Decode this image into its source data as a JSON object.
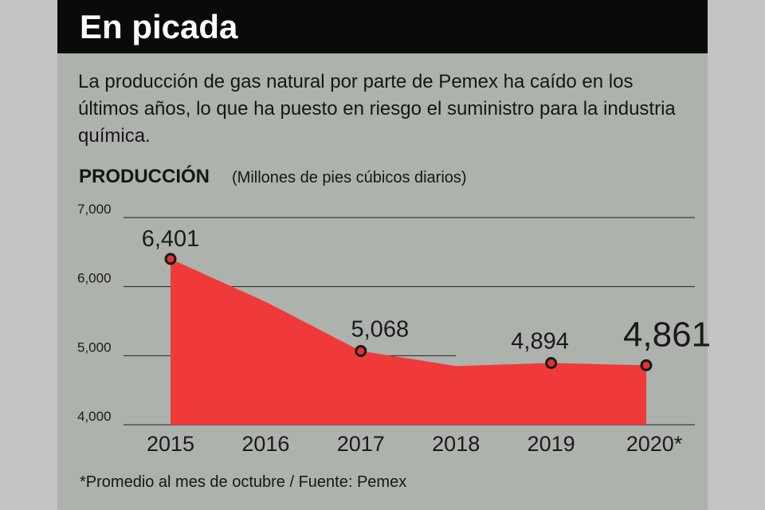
{
  "title": "En picada",
  "subtitle": "La producción de gas natural por parte de Pemex ha caído en los últimos años, lo que ha puesto en riesgo el suministro para la industria química.",
  "footnote": "*Promedio al mes de octubre / Fuente: Pemex",
  "colors": {
    "area": "#f03a3a",
    "header": "#0a0a0a",
    "panel": "#aeb2ad",
    "marker": "#e23232"
  },
  "chart_data": {
    "type": "area",
    "title": "PRODUCCIÓN",
    "unit": "(Millones de pies cúbicos diarios)",
    "x": [
      "2015",
      "2016",
      "2017",
      "2018",
      "2019",
      "2020*"
    ],
    "values": [
      6401,
      5780,
      5068,
      4850,
      4894,
      4861
    ],
    "data_labels": [
      "6,401",
      null,
      "5,068",
      null,
      "4,894",
      "4,861"
    ],
    "yticks": [
      "7,000",
      "6,000",
      "5,000",
      "4,000"
    ],
    "ytick_values": [
      7000,
      6000,
      5000,
      4000
    ],
    "ylim": [
      4000,
      7000
    ],
    "grid": true
  }
}
